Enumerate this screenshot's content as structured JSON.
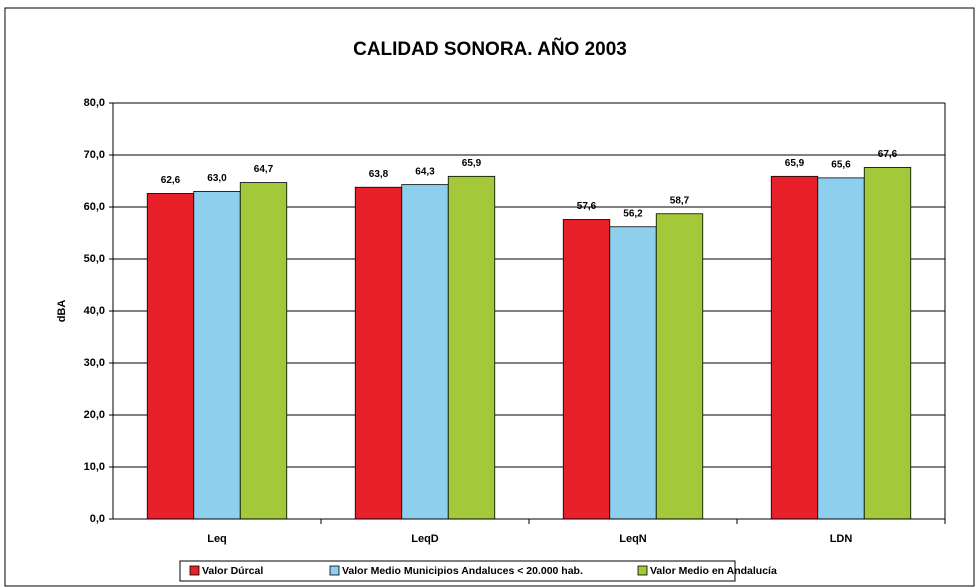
{
  "chart_data": {
    "type": "bar",
    "title": "CALIDAD SONORA. AÑO 2003",
    "ylabel": "dBA",
    "categories": [
      "Leq",
      "LeqD",
      "LeqN",
      "LDN"
    ],
    "series": [
      {
        "name": "Valor Dúrcal",
        "color": "#e8202a",
        "values": [
          62.6,
          63.8,
          57.6,
          65.9
        ],
        "value_labels": [
          "62,6",
          "63,8",
          "57,6",
          "65,9"
        ]
      },
      {
        "name": "Valor Medio Municipios Andaluces < 20.000 hab.",
        "color": "#8ecfee",
        "values": [
          63.0,
          64.3,
          56.2,
          65.6
        ],
        "value_labels": [
          "63,0",
          "64,3",
          "56,2",
          "65,6"
        ]
      },
      {
        "name": "Valor Medio en Andalucía",
        "color": "#a3c93a",
        "values": [
          64.7,
          65.9,
          58.7,
          67.6
        ],
        "value_labels": [
          "64,7",
          "65,9",
          "58,7",
          "67,6"
        ]
      }
    ],
    "ylim": [
      0,
      80
    ],
    "yticks": [
      {
        "value": 0,
        "label": "0,0"
      },
      {
        "value": 10,
        "label": "10,0"
      },
      {
        "value": 20,
        "label": "20,0"
      },
      {
        "value": 30,
        "label": "30,0"
      },
      {
        "value": 40,
        "label": "40,0"
      },
      {
        "value": 50,
        "label": "50,0"
      },
      {
        "value": 60,
        "label": "60,0"
      },
      {
        "value": 70,
        "label": "70,0"
      },
      {
        "value": 80,
        "label": "80,0"
      }
    ],
    "grid": true,
    "legend": "bottom"
  }
}
